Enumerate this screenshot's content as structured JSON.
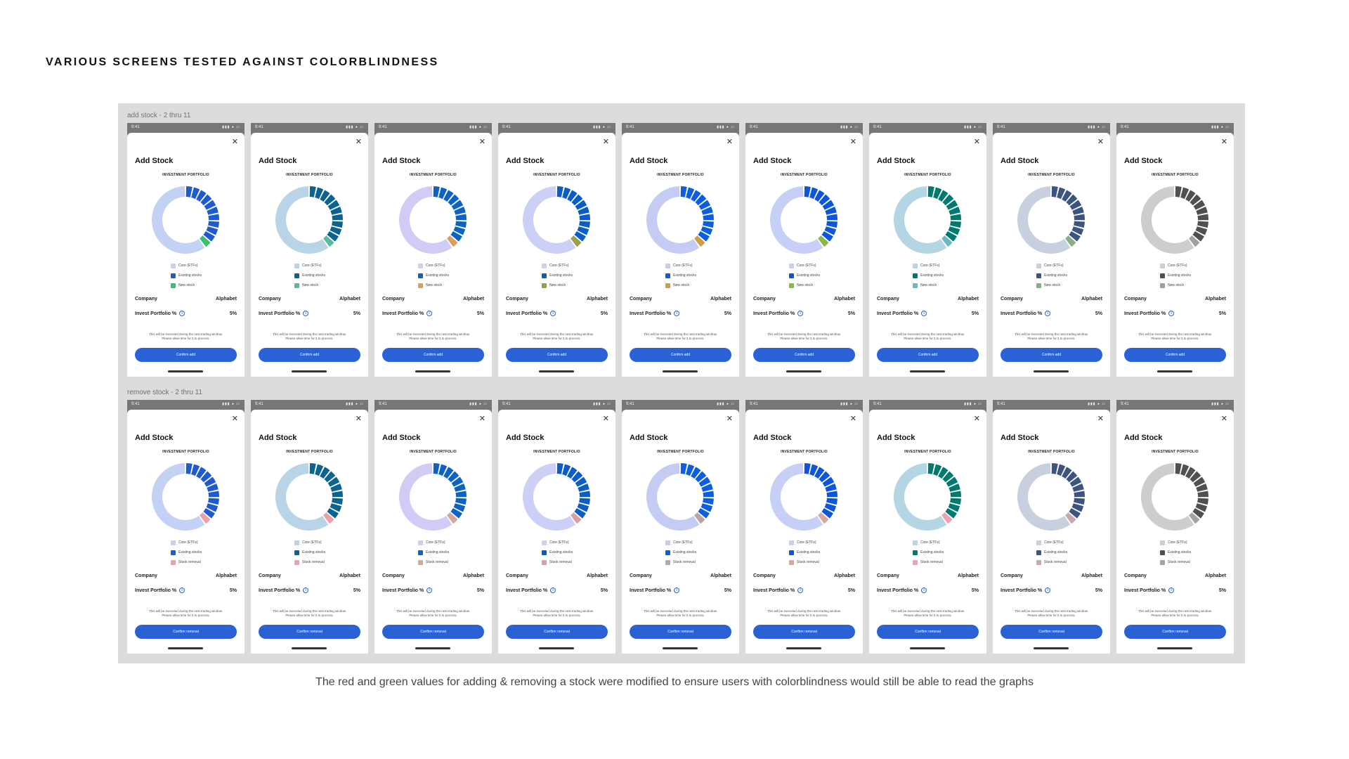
{
  "page_heading": "VARIOUS SCREENS TESTED AGAINST COLORBLINDNESS",
  "caption": "The red and green values for adding & removing a stock were modified to ensure users with colorblindness would still be able to read the graphs",
  "rows": [
    {
      "label": "add stock - 2 thru 11",
      "mode": "add",
      "confirm_label": "Confirm add",
      "legend": [
        "Core (ETFs)",
        "Existing stocks",
        "New stock"
      ]
    },
    {
      "label": "remove stock - 2 thru 11",
      "mode": "remove",
      "confirm_label": "Confirm removal",
      "legend": [
        "Core (ETFs)",
        "Existing stocks",
        "Stock removal"
      ]
    }
  ],
  "screen": {
    "time": "9:41",
    "title": "Add Stock",
    "portfolio_title": "INVESTMENT PORTFOLIO",
    "company_label": "Company",
    "company_value": "Alphabet",
    "invest_label": "Invest Portfolio %",
    "invest_value": "5%",
    "note_line1": "This will be executed during the next trading window.",
    "note_line2": "Please allow time for it to process."
  },
  "chart_data": {
    "type": "pie",
    "categories": [
      "Core (ETFs)",
      "Existing stocks",
      "New stock / Stock removal"
    ],
    "core_share": 0.6,
    "existing_segments": 10,
    "highlight_segments": 1
  },
  "palettes": [
    {
      "core": "#c3d1f4",
      "existing": "#1f5ad3",
      "add": "#35c26a",
      "remove": "#f0a0a4"
    },
    {
      "core": "#b8d4e6",
      "existing": "#0b6490",
      "add": "#58bba0",
      "remove": "#f0a0a8"
    },
    {
      "core": "#d0ccf6",
      "existing": "#0c63c4",
      "add": "#d9a05a",
      "remove": "#d4a898"
    },
    {
      "core": "#cccff6",
      "existing": "#0a5cc8",
      "add": "#9aa04a",
      "remove": "#d8a0a0"
    },
    {
      "core": "#c4ccf4",
      "existing": "#0c5ee0",
      "add": "#c9a048",
      "remove": "#b8a8a0"
    },
    {
      "core": "#c6d0f6",
      "existing": "#0d55da",
      "add": "#8cb84a",
      "remove": "#d6a8a0"
    },
    {
      "core": "#b4d6e4",
      "existing": "#007a70",
      "add": "#6ab8c0",
      "remove": "#f0a0b0"
    },
    {
      "core": "#c8d0e0",
      "existing": "#3b5580",
      "add": "#88b088",
      "remove": "#c8a8a8"
    },
    {
      "core": "#cdcdcd",
      "existing": "#505050",
      "add": "#a0a0a0",
      "remove": "#a4a4a4"
    }
  ]
}
